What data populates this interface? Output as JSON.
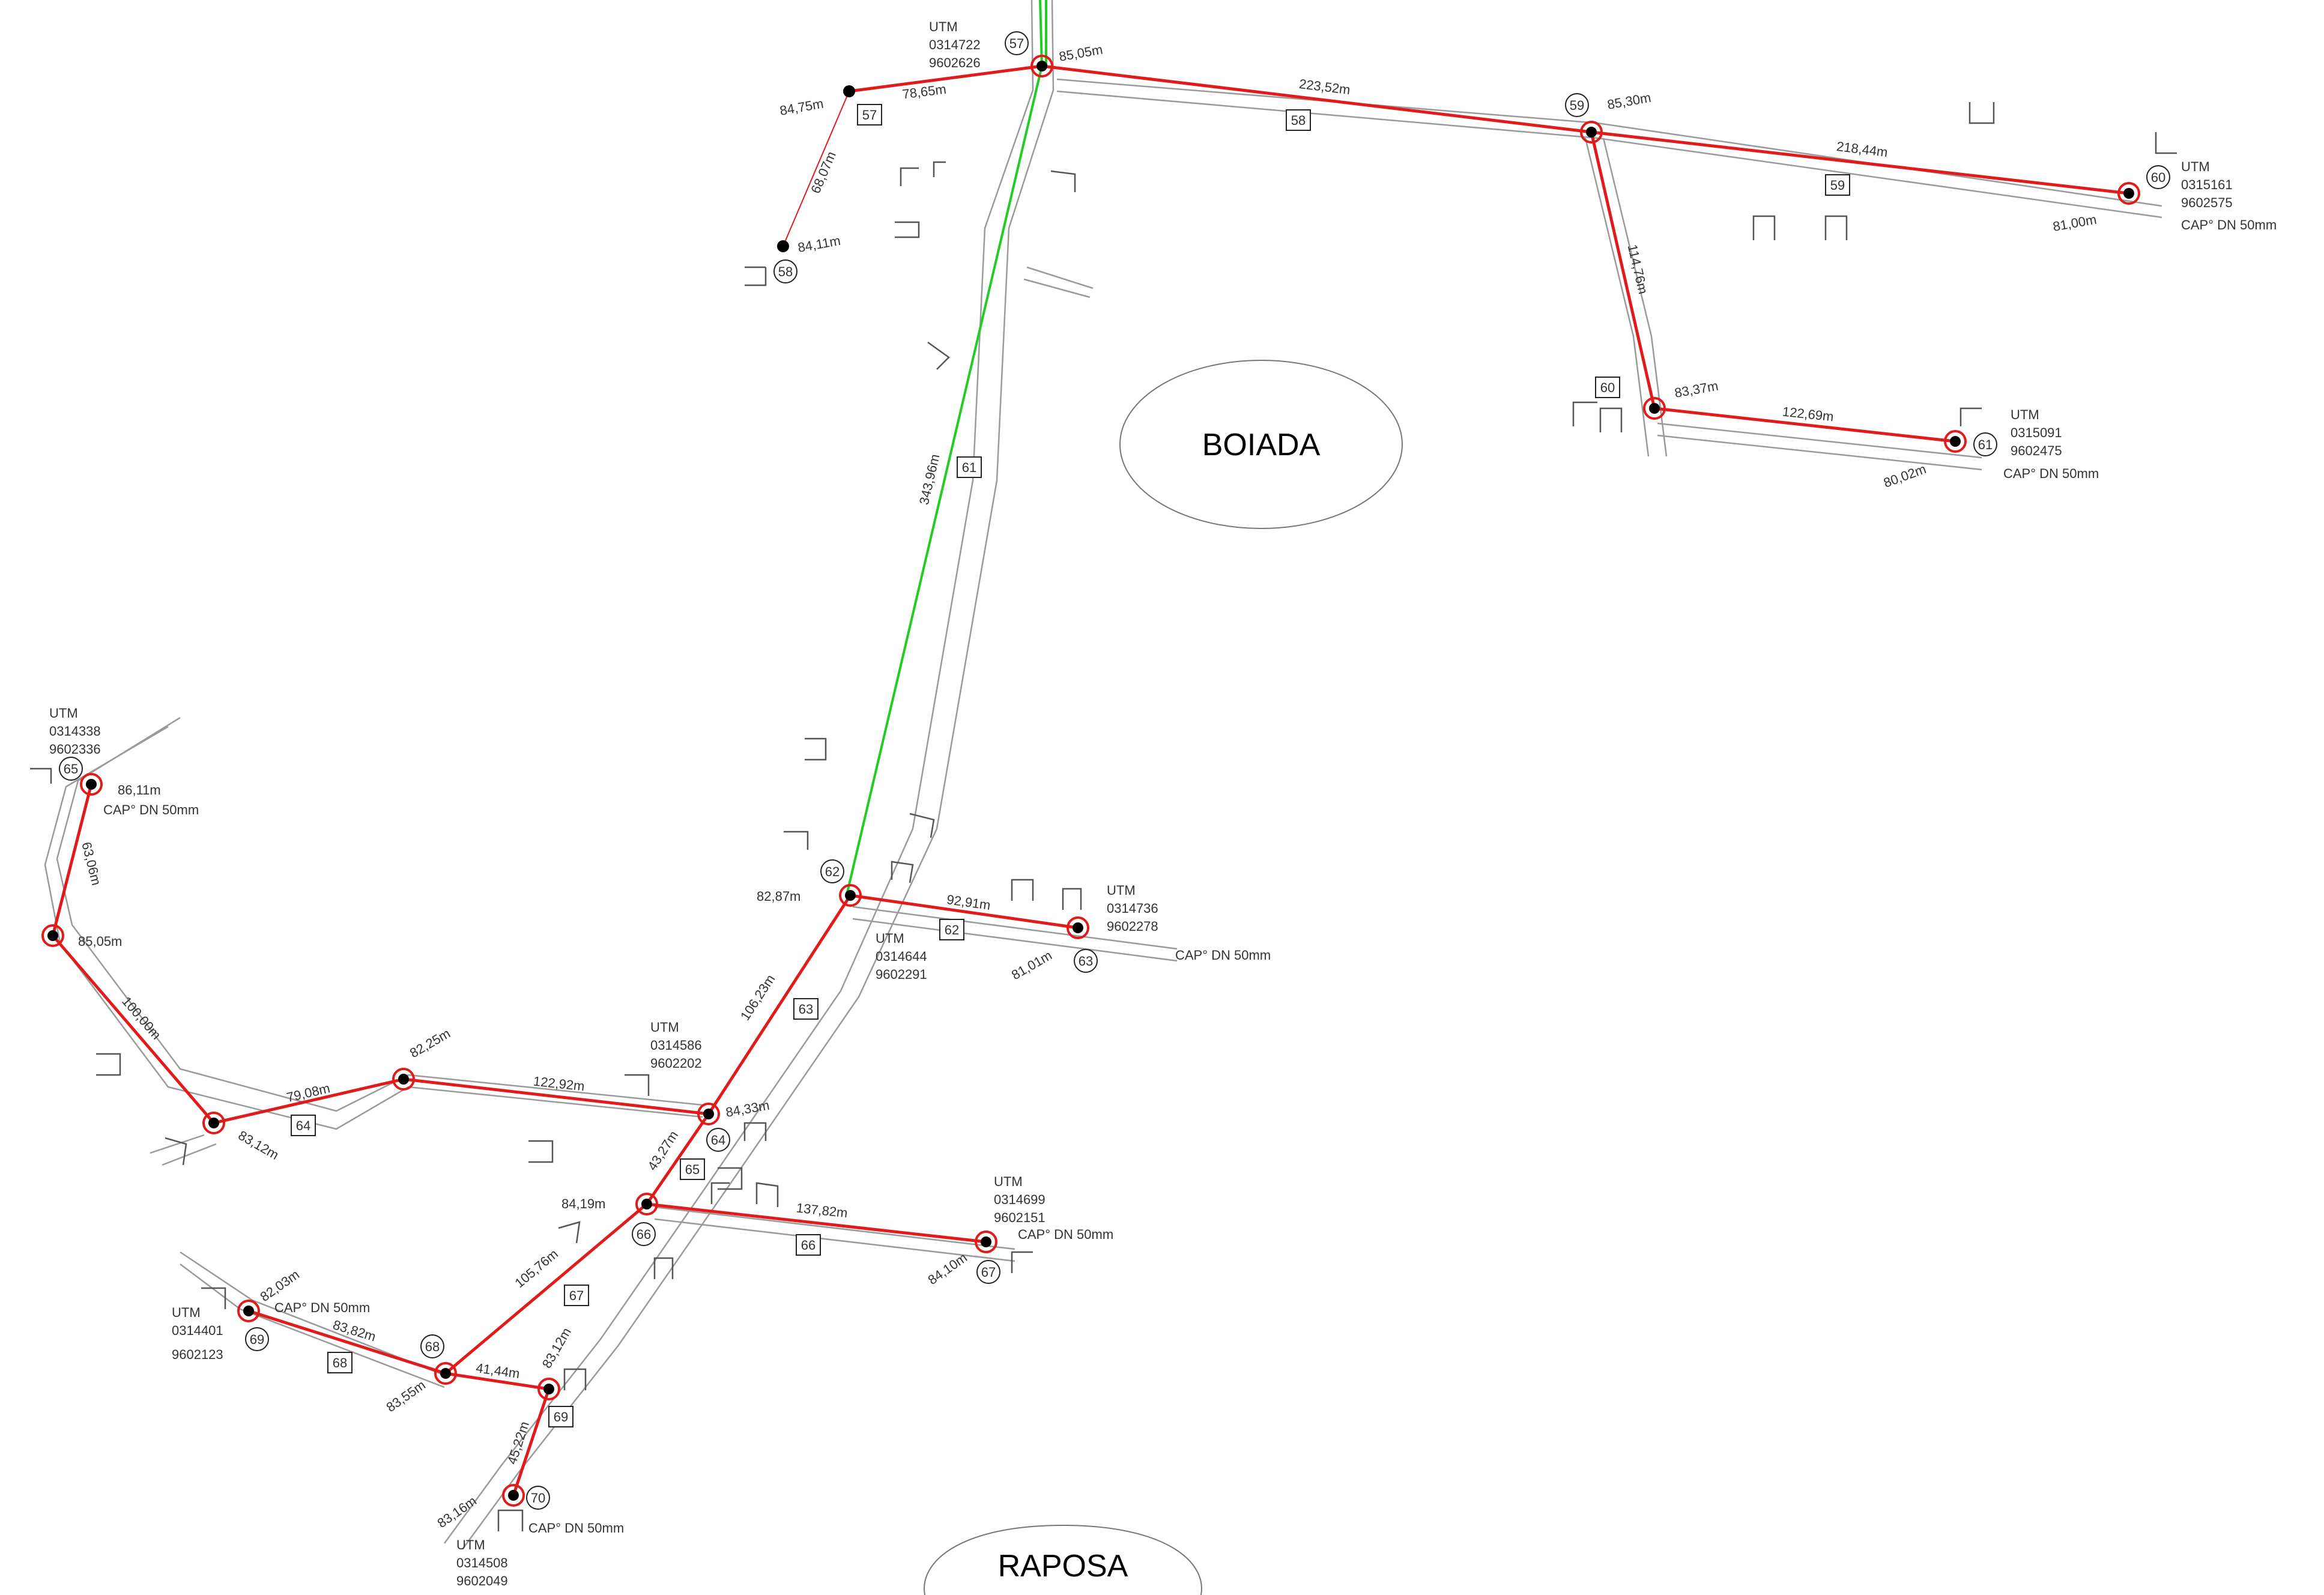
{
  "localities": [
    {
      "id": "boiada",
      "name": "BOIADA"
    },
    {
      "id": "raposa",
      "name": "RAPOSA"
    }
  ],
  "nodes": [
    {
      "id": "n57",
      "number": "57",
      "elevation": "85,05m",
      "utm_label": "UTM",
      "utm_e": "0314722",
      "utm_n": "9602626"
    },
    {
      "id": "n57a",
      "number": "",
      "elevation": "84,75m"
    },
    {
      "id": "n58",
      "number": "58",
      "elevation": "84,11m"
    },
    {
      "id": "n59",
      "number": "59",
      "elevation": "85,30m"
    },
    {
      "id": "n60",
      "number": "60",
      "elevation": "81,00m",
      "utm_label": "UTM",
      "utm_e": "0315161",
      "utm_n": "9602575",
      "cap": "CAP° DN 50mm"
    },
    {
      "id": "n60a",
      "number": "",
      "elevation": "83,37m"
    },
    {
      "id": "n61",
      "number": "61",
      "elevation": "80,02m",
      "utm_label": "UTM",
      "utm_e": "0315091",
      "utm_n": "9602475",
      "cap": "CAP° DN 50mm"
    },
    {
      "id": "n62",
      "number": "62",
      "elevation": "82,87m",
      "utm_label": "UTM",
      "utm_e": "0314644",
      "utm_n": "9602291"
    },
    {
      "id": "n63",
      "number": "63",
      "elevation": "81,01m",
      "utm_label": "UTM",
      "utm_e": "0314736",
      "utm_n": "9602278",
      "cap": "CAP° DN 50mm"
    },
    {
      "id": "n64",
      "number": "64",
      "elevation": "84,33m",
      "utm_label": "UTM",
      "utm_e": "0314586",
      "utm_n": "9602202"
    },
    {
      "id": "n64a",
      "number": "",
      "elevation": "82,25m"
    },
    {
      "id": "n64b",
      "number": "",
      "elevation": "83,12m"
    },
    {
      "id": "n64c",
      "number": "",
      "elevation": "85,05m"
    },
    {
      "id": "n65",
      "number": "65",
      "elevation": "86,11m",
      "utm_label": "UTM",
      "utm_e": "0314338",
      "utm_n": "9602336",
      "cap": "CAP° DN 50mm"
    },
    {
      "id": "n66",
      "number": "66",
      "elevation": "84,19m"
    },
    {
      "id": "n67",
      "number": "67",
      "elevation": "84,10m",
      "utm_label": "UTM",
      "utm_e": "0314699",
      "utm_n": "9602151",
      "cap": "CAP° DN 50mm"
    },
    {
      "id": "n68",
      "number": "68",
      "elevation": "83,55m"
    },
    {
      "id": "n69",
      "number": "69",
      "elevation": "82,03m",
      "utm_label": "UTM",
      "utm_e": "0314401",
      "utm_n": "9602123",
      "cap": "CAP° DN 50mm"
    },
    {
      "id": "n69a",
      "number": "",
      "elevation": "83,12m"
    },
    {
      "id": "n70",
      "number": "70",
      "elevation": "83,16m",
      "utm_label": "UTM",
      "utm_e": "0314508",
      "utm_n": "9602049",
      "cap": "CAP° DN 50mm"
    }
  ],
  "segments": [
    {
      "id": "s57",
      "number": "57",
      "length": "78,65m"
    },
    {
      "id": "s57b",
      "number": "",
      "length": "68,07m"
    },
    {
      "id": "s58",
      "number": "58",
      "length": "223,52m"
    },
    {
      "id": "s59",
      "number": "59",
      "length": "218,44m"
    },
    {
      "id": "s60",
      "number": "60",
      "length": "114,76m"
    },
    {
      "id": "s60b",
      "number": "",
      "length": "122,69m"
    },
    {
      "id": "s61",
      "number": "61",
      "length": "343,96m"
    },
    {
      "id": "s62",
      "number": "62",
      "length": "92,91m"
    },
    {
      "id": "s63",
      "number": "63",
      "length": "106,23m"
    },
    {
      "id": "s64",
      "number": "64",
      "length": "79,08m"
    },
    {
      "id": "s64b",
      "number": "",
      "length": "122,92m"
    },
    {
      "id": "s64c",
      "number": "",
      "length": "100,00m"
    },
    {
      "id": "s64d",
      "number": "",
      "length": "63,06m"
    },
    {
      "id": "s65",
      "number": "65",
      "length": "43,27m"
    },
    {
      "id": "s66",
      "number": "66",
      "length": "137,82m"
    },
    {
      "id": "s67",
      "number": "67",
      "length": "105,76m"
    },
    {
      "id": "s68",
      "number": "68",
      "length": "83,82m"
    },
    {
      "id": "s68b",
      "number": "",
      "length": "41,44m"
    },
    {
      "id": "s69",
      "number": "69",
      "length": "45,22m"
    }
  ],
  "colors": {
    "network_pipe": "#e11a1a",
    "main_line": "#22cc22",
    "road": "#9a9a9a",
    "text": "#333333"
  }
}
